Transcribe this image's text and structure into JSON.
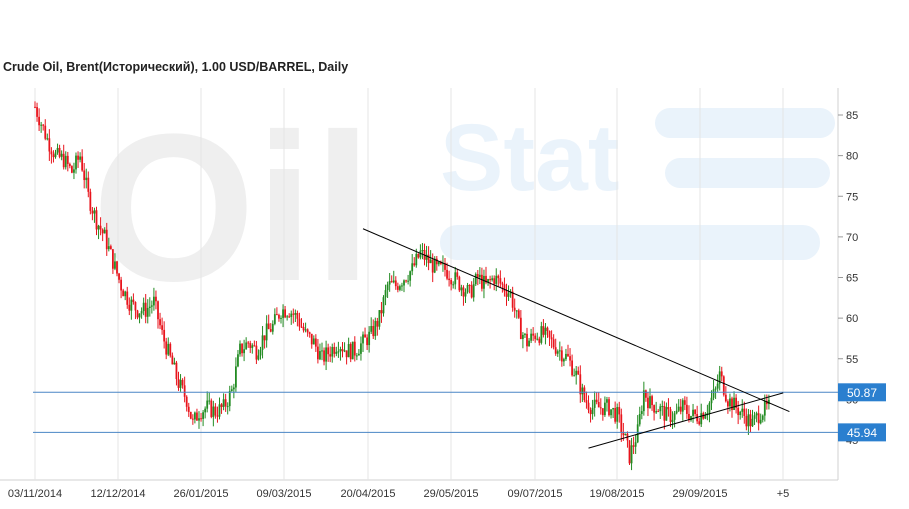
{
  "chart_data": {
    "type": "candlestick",
    "title": "Crude Oil, Brent(Исторический), 1.00 USD/BARREL, Daily",
    "watermark": {
      "text_left": "Oil",
      "text_right": "Stat"
    },
    "ylim": [
      41,
      87
    ],
    "y_ticks": [
      85,
      80,
      75,
      70,
      65,
      60,
      55,
      50,
      45
    ],
    "x_ticks": [
      "03/11/2014",
      "12/12/2014",
      "26/01/2015",
      "09/03/2015",
      "20/04/2015",
      "29/05/2015",
      "09/07/2015",
      "19/08/2015",
      "29/09/2015",
      "+5"
    ],
    "grid": "vertical",
    "colors": {
      "up": "#228b22",
      "down": "#e8141c",
      "level_line": "#4a86c5",
      "badge": "#2a7fcf",
      "trend": "#000000"
    },
    "price_levels": [
      {
        "value": 50.87,
        "label": "50.87"
      },
      {
        "value": 45.94,
        "label": "45.94"
      }
    ],
    "close_path": [
      [
        0,
        86
      ],
      [
        3,
        84
      ],
      [
        6,
        82
      ],
      [
        10,
        80
      ],
      [
        14,
        79.5
      ],
      [
        18,
        78
      ],
      [
        22,
        80
      ],
      [
        26,
        75
      ],
      [
        30,
        72
      ],
      [
        34,
        70
      ],
      [
        38,
        67
      ],
      [
        42,
        64
      ],
      [
        46,
        62
      ],
      [
        50,
        61
      ],
      [
        54,
        61
      ],
      [
        58,
        62
      ],
      [
        62,
        58
      ],
      [
        66,
        55
      ],
      [
        70,
        52
      ],
      [
        74,
        50
      ],
      [
        77,
        47
      ],
      [
        80,
        48.5
      ],
      [
        84,
        49
      ],
      [
        88,
        48.5
      ],
      [
        92,
        49
      ],
      [
        96,
        51
      ],
      [
        100,
        56
      ],
      [
        104,
        57
      ],
      [
        108,
        56
      ],
      [
        112,
        58
      ],
      [
        116,
        59
      ],
      [
        120,
        61
      ],
      [
        124,
        61
      ],
      [
        128,
        60
      ],
      [
        132,
        58
      ],
      [
        136,
        57
      ],
      [
        140,
        55
      ],
      [
        144,
        56
      ],
      [
        148,
        57
      ],
      [
        152,
        56
      ],
      [
        156,
        56
      ],
      [
        160,
        57
      ],
      [
        164,
        58
      ],
      [
        168,
        60
      ],
      [
        172,
        64
      ],
      [
        176,
        64
      ],
      [
        180,
        65
      ],
      [
        184,
        66
      ],
      [
        188,
        68
      ],
      [
        192,
        67
      ],
      [
        196,
        66
      ],
      [
        200,
        66
      ],
      [
        204,
        65
      ],
      [
        208,
        64
      ],
      [
        212,
        63
      ],
      [
        216,
        65
      ],
      [
        220,
        64
      ],
      [
        224,
        65
      ],
      [
        228,
        64
      ],
      [
        232,
        63
      ],
      [
        236,
        59
      ],
      [
        240,
        57
      ],
      [
        244,
        58
      ],
      [
        248,
        58
      ],
      [
        252,
        57
      ],
      [
        256,
        56
      ],
      [
        260,
        55
      ],
      [
        264,
        53
      ],
      [
        268,
        50
      ],
      [
        272,
        49
      ],
      [
        276,
        49
      ],
      [
        280,
        49
      ],
      [
        284,
        48
      ],
      [
        288,
        45
      ],
      [
        290,
        43
      ],
      [
        294,
        46
      ],
      [
        297,
        51
      ],
      [
        300,
        49.5
      ],
      [
        304,
        49
      ],
      [
        308,
        48
      ],
      [
        312,
        48
      ],
      [
        316,
        49
      ],
      [
        320,
        48
      ],
      [
        324,
        48
      ],
      [
        328,
        49
      ],
      [
        332,
        51
      ],
      [
        334,
        53
      ],
      [
        338,
        50
      ],
      [
        342,
        49
      ],
      [
        346,
        48
      ],
      [
        350,
        47
      ],
      [
        354,
        48.5
      ],
      [
        358,
        49
      ]
    ],
    "trendlines": [
      {
        "from": [
          160,
          71
        ],
        "to": [
          368,
          48.5
        ]
      },
      {
        "from": [
          270,
          44
        ],
        "to": [
          365,
          50.8
        ]
      }
    ]
  }
}
